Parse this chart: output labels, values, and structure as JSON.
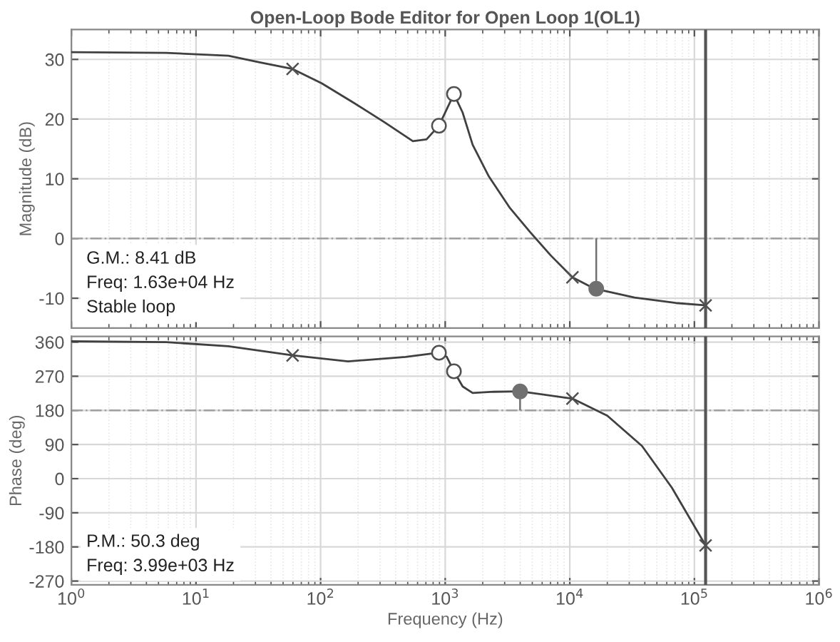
{
  "chart_data": [
    {
      "type": "line",
      "title": "Open-Loop Bode Editor for Open Loop 1(OL1)",
      "ylabel": "Magnitude (dB)",
      "log": "x",
      "grid": true,
      "tick_labels": "y",
      "xlim": [
        1,
        1000000
      ],
      "ylim": [
        -15,
        35
      ],
      "yticks": [
        -10,
        0,
        10,
        20,
        30
      ],
      "series": [
        {
          "color": "#404040",
          "x": [
            1,
            5.75,
            18.2,
            32.4,
            59.6,
            102,
            182,
            324,
            550,
            708,
            891,
            1175,
            1380,
            1660,
            2240,
            3310,
            4790,
            7080,
            10500,
            15800,
            33100,
            70800,
            123000
          ],
          "values": [
            31.2,
            31.1,
            30.6,
            29.5,
            28.4,
            26.0,
            22.8,
            19.5,
            16.3,
            16.6,
            18.9,
            24.2,
            21.1,
            15.7,
            10.4,
            5.1,
            1.1,
            -2.9,
            -6.5,
            -8.4,
            -9.9,
            -10.8,
            -11.2
          ]
        },
        {
          "type": "scatter",
          "marker": "cross",
          "color": "#505050",
          "x": [
            59.6,
            10500,
            123000
          ],
          "values": [
            28.4,
            -6.5,
            -11.2
          ]
        },
        {
          "type": "scatter",
          "marker": "circle",
          "color": "#505050",
          "x": [
            891,
            1175
          ],
          "values": [
            18.9,
            24.2
          ]
        },
        {
          "type": "scatter",
          "marker": "circle",
          "color": "#707070",
          "x": [
            16300
          ],
          "values": [
            -8.4
          ],
          "errors": [
            [
              -8.4,
              0
            ]
          ]
        }
      ],
      "ref_lines": [
        {
          "axis": "y",
          "value": 0,
          "line_style": "dashdot",
          "color": "#a0a0a0"
        },
        {
          "axis": "x",
          "value": 123000,
          "color": "#555555"
        }
      ],
      "annotations": [
        "G.M.: 8.41 dB\nFreq: 1.63e+04 Hz\nStable loop"
      ]
    },
    {
      "type": "line",
      "xlabel": "Frequency (Hz)",
      "ylabel": "Phase (deg)",
      "log": "x",
      "grid": true,
      "xlim": [
        1,
        1000000
      ],
      "ylim": [
        -280,
        375
      ],
      "yticks": [
        -270,
        -180,
        -90,
        0,
        90,
        180,
        270,
        360
      ],
      "xticks": [
        {
          "value": 1,
          "label": "10$^{0}$"
        },
        {
          "value": 10,
          "label": "10$^{1}$"
        },
        {
          "value": 100,
          "label": "10$^{2}$"
        },
        {
          "value": 1000,
          "label": "10$^{3}$"
        },
        {
          "value": 10000,
          "label": "10$^{4}$"
        },
        {
          "value": 100000,
          "label": "10$^{5}$"
        },
        {
          "value": 1000000,
          "label": "10$^{6}$"
        }
      ],
      "series": [
        {
          "color": "#404040",
          "x": [
            1,
            5.75,
            18.2,
            59.6,
            166,
            480,
            891,
            1030,
            1175,
            1380,
            1660,
            2450,
            3990,
            10500,
            20000,
            38000,
            66000,
            123000
          ],
          "values": [
            362,
            360,
            349,
            325,
            309,
            321,
            332,
            321,
            283,
            243,
            226,
            229,
            230,
            211,
            166,
            86,
            -24,
            -176
          ]
        },
        {
          "type": "scatter",
          "marker": "cross",
          "color": "#505050",
          "x": [
            59.6,
            10500,
            123000
          ],
          "values": [
            325,
            211,
            -176
          ]
        },
        {
          "type": "scatter",
          "marker": "circle",
          "color": "#505050",
          "x": [
            891,
            1175
          ],
          "values": [
            332,
            283
          ]
        },
        {
          "type": "scatter",
          "marker": "circle",
          "color": "#707070",
          "x": [
            3990
          ],
          "values": [
            230
          ],
          "errors": [
            [
              180,
              230
            ]
          ]
        }
      ],
      "ref_lines": [
        {
          "axis": "y",
          "value": 180,
          "line_style": "dashdot",
          "color": "#a0a0a0"
        },
        {
          "axis": "x",
          "value": 123000,
          "color": "#555555"
        }
      ],
      "annotations": [
        "P.M.: 50.3 deg\nFreq: 3.99e+03 Hz"
      ]
    }
  ]
}
